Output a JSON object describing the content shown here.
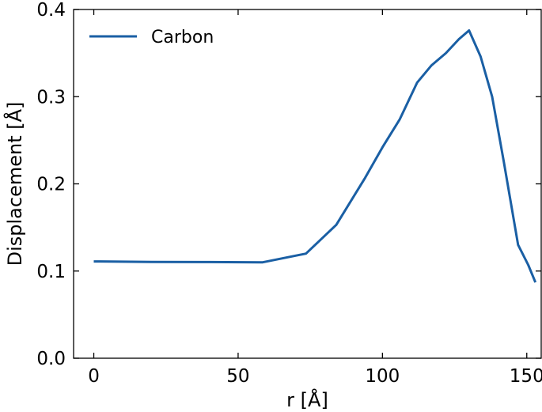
{
  "chart_data": {
    "type": "line",
    "title": "",
    "xlabel": "r [Å]",
    "ylabel": "Displacement [Å]",
    "xlim": [
      -7,
      155
    ],
    "ylim": [
      0.0,
      0.4
    ],
    "x_ticks": [
      0,
      50,
      100,
      150
    ],
    "x_tick_labels": [
      "0",
      "50",
      "100",
      "150"
    ],
    "y_ticks": [
      0.0,
      0.1,
      0.2,
      0.3,
      0.4
    ],
    "y_tick_labels": [
      "0.0",
      "0.1",
      "0.2",
      "0.3",
      "0.4"
    ],
    "grid": false,
    "legend_position": "top-left",
    "series": [
      {
        "name": "Carbon",
        "color": "#1a5fa4",
        "x": [
          0,
          20,
          40,
          58.5,
          73.5,
          84,
          94,
          100,
          106,
          112,
          117,
          122,
          126.5,
          130,
          134,
          138,
          142,
          147,
          150.5,
          153
        ],
        "y": [
          0.111,
          0.1105,
          0.1103,
          0.11,
          0.12,
          0.153,
          0.207,
          0.242,
          0.274,
          0.316,
          0.336,
          0.35,
          0.366,
          0.376,
          0.346,
          0.3,
          0.226,
          0.13,
          0.107,
          0.087
        ]
      }
    ]
  }
}
